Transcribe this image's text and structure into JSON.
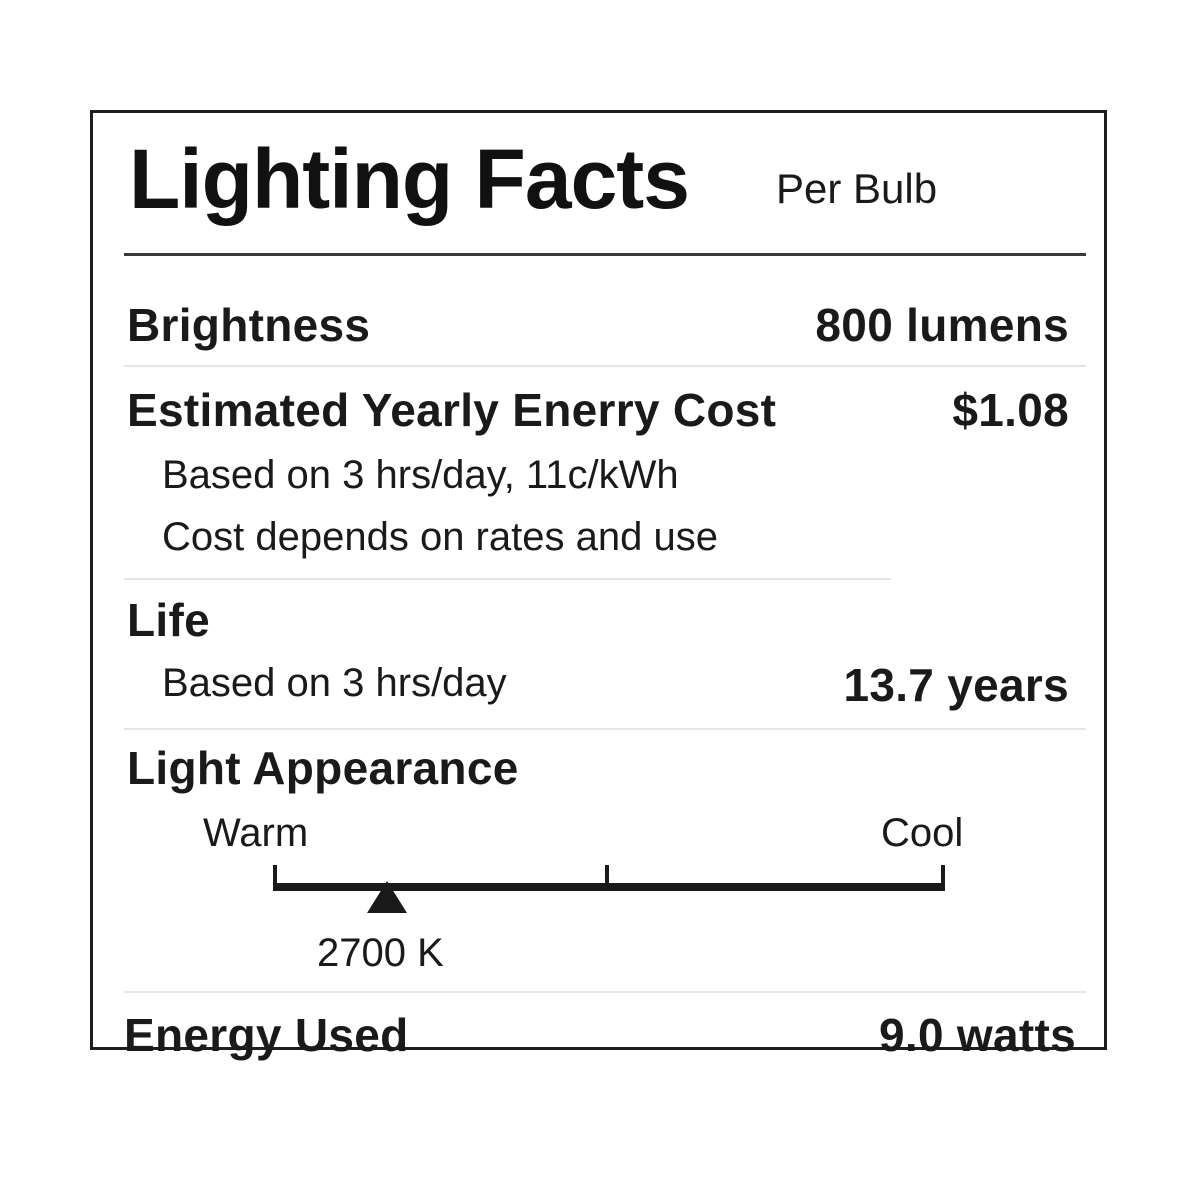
{
  "label": {
    "title": "Lighting Facts",
    "per_bulb": "Per Bulb",
    "brightness": {
      "label": "Brightness",
      "value": "800 lumens"
    },
    "energy_cost": {
      "label": "Estimated Yearly Enerry Cost",
      "value": "$1.08",
      "note_1": "Based on 3 hrs/day, 11c/kWh",
      "note_2": "Cost depends on rates and use"
    },
    "life": {
      "label": "Life",
      "note": "Based on 3 hrs/day",
      "value": "13.7 years"
    },
    "light_appearance": {
      "label": "Light Appearance",
      "warm": "Warm",
      "cool": "Cool",
      "value": "2700 K",
      "position_fraction": 0.17
    },
    "energy_used": {
      "label": "Energy Used",
      "value": "9.0 watts"
    }
  }
}
